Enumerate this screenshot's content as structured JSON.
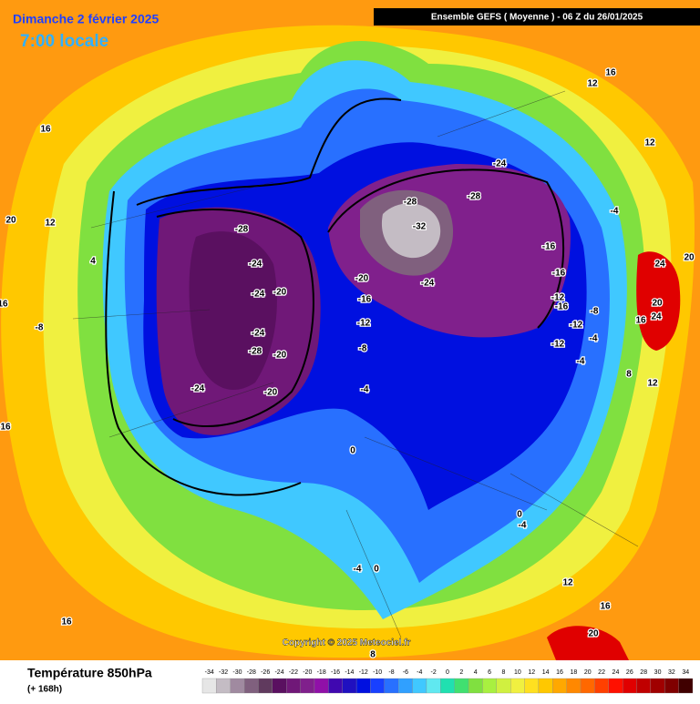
{
  "header": {
    "date": "Dimanche 2 février 2025",
    "time": "7:00 locale",
    "run": "Ensemble GEFS  ( Moyenne )  -  06 Z du 26/01/2025"
  },
  "footer": {
    "variable": "Température 850hPa",
    "lead": "(+ 168h)",
    "copyright": "Copyright © 2025 Meteociel.fr"
  },
  "colorbar": {
    "ticks": [
      -34,
      -32,
      -30,
      -28,
      -26,
      -24,
      -22,
      -20,
      -18,
      -16,
      -14,
      -12,
      -10,
      -8,
      -6,
      -4,
      -2,
      0,
      2,
      4,
      6,
      8,
      10,
      12,
      14,
      16,
      18,
      20,
      22,
      24,
      26,
      28,
      30,
      32,
      34
    ],
    "colors": [
      "#e6e6e6",
      "#c4bcc4",
      "#a08aa0",
      "#80607e",
      "#603a5e",
      "#5a1060",
      "#701878",
      "#80208c",
      "#9010a8",
      "#4008b0",
      "#2010c0",
      "#0010e0",
      "#1840ff",
      "#2870ff",
      "#30a0ff",
      "#40c8ff",
      "#60e8f0",
      "#20e0b0",
      "#40e070",
      "#80e040",
      "#a8f040",
      "#d0f040",
      "#f0f040",
      "#ffe020",
      "#ffc800",
      "#ffa800",
      "#ff8800",
      "#ff6800",
      "#ff4000",
      "#ff1000",
      "#e00000",
      "#c00000",
      "#a00000",
      "#800000",
      "#400000"
    ]
  },
  "contour_labels": [
    "-28",
    "-24",
    "-24",
    "-20",
    "-24",
    "-28",
    "-20",
    "-24",
    "-20",
    "-28",
    "-32",
    "-24",
    "-20",
    "-16",
    "-12",
    "-8",
    "-4",
    "0",
    "-28",
    "-24",
    "-16",
    "-16",
    "-12",
    "-16",
    "-12",
    "-12",
    "-4",
    "-8",
    "-4",
    "16",
    "12",
    "12",
    "-4",
    "16",
    "12",
    "4",
    "20",
    "-8",
    "16",
    "12",
    "16",
    "20",
    "24",
    "20",
    "24",
    "20",
    "16",
    "8",
    "12",
    "0",
    "-4",
    "-4",
    "0",
    "8",
    "16",
    "16"
  ]
}
